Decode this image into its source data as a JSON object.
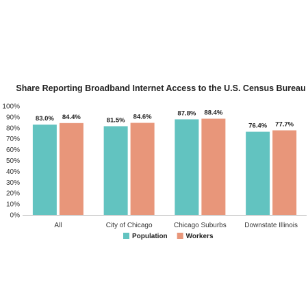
{
  "chart_data": {
    "type": "bar",
    "title": "Share Reporting Broadband Internet Access to the U.S. Census Bureau",
    "xlabel": "",
    "ylabel": "",
    "categories": [
      "All",
      "City of Chicago",
      "Chicago Suburbs",
      "Downstate Illinois"
    ],
    "series": [
      {
        "name": "Population",
        "values": [
          83.0,
          81.5,
          87.8,
          76.4
        ],
        "labels": [
          "83.0%",
          "81.5%",
          "87.8%",
          "76.4%"
        ],
        "color": "#62c3c0"
      },
      {
        "name": "Workers",
        "values": [
          84.4,
          84.6,
          88.4,
          77.7
        ],
        "labels": [
          "84.4%",
          "84.6%",
          "88.4%",
          "77.7%"
        ],
        "color": "#e8967a"
      }
    ],
    "ylim": [
      0,
      100
    ],
    "yticks": [
      "0%",
      "10%",
      "20%",
      "30%",
      "40%",
      "50%",
      "60%",
      "70%",
      "80%",
      "90%",
      "100%"
    ],
    "grid": false,
    "legend_position": "bottom"
  }
}
